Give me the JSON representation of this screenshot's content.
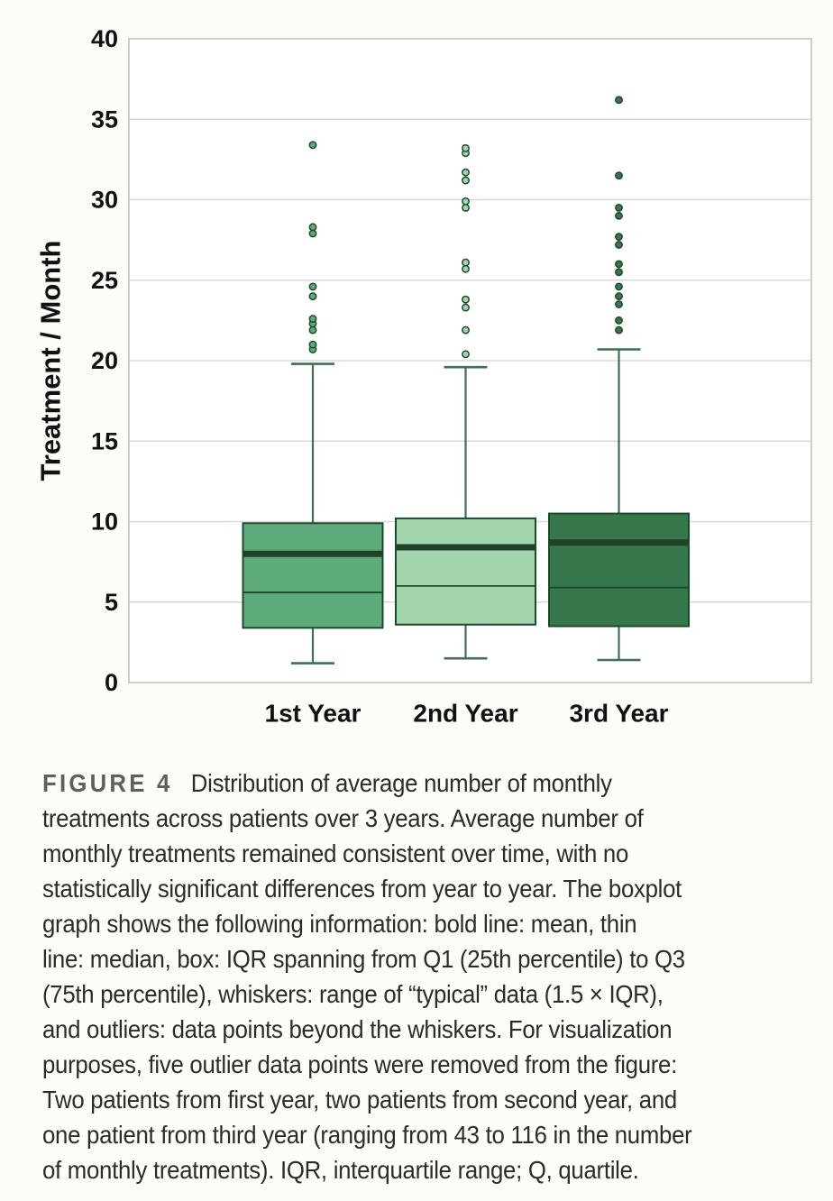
{
  "figure": {
    "caption": {
      "figure_label": "FIGURE 4",
      "lines": [
        "Distribution of average number of monthly",
        "treatments across patients over 3 years. Average number of",
        "monthly treatments remained consistent over time, with no",
        "statistically significant differences from year to year. The boxplot",
        "graph shows the following information: bold line: mean, thin",
        "line: median, box: IQR spanning from Q1 (25th percentile) to Q3",
        "(75th percentile), whiskers: range of “typical” data (1.5 × IQR),",
        "and outliers: data points beyond the whiskers. For visualization",
        "purposes, five outlier data points were removed from the figure:",
        "Two patients from first year, two patients from second year, and",
        "one patient from third year (ranging from 43 to 116 in the number",
        "of monthly treatments). IQR, interquartile range; Q, quartile."
      ]
    }
  },
  "chart_data": {
    "type": "boxplot",
    "title": "",
    "xlabel": "",
    "ylabel": "Treatment / Month",
    "ylim": [
      0,
      40
    ],
    "yticks": [
      0,
      5,
      10,
      15,
      20,
      25,
      30,
      35,
      40
    ],
    "grid": "horizontal",
    "legend": "none",
    "categories": [
      "1st Year",
      "2nd Year",
      "3rd Year"
    ],
    "series": [
      {
        "name": "1st Year",
        "whisker_low": 1.2,
        "q1": 3.4,
        "median": 5.6,
        "mean": 8.0,
        "q3": 9.9,
        "whisker_high": 19.8,
        "outliers": [
          20.7,
          21.0,
          21.9,
          22.3,
          22.6,
          24.0,
          24.6,
          27.9,
          28.3,
          33.4
        ],
        "fill_color": "#5dab7a"
      },
      {
        "name": "2nd Year",
        "whisker_low": 1.5,
        "q1": 3.6,
        "median": 6.0,
        "mean": 8.4,
        "q3": 10.2,
        "whisker_high": 19.6,
        "outliers": [
          20.4,
          21.9,
          23.3,
          23.8,
          25.7,
          26.1,
          29.5,
          29.9,
          31.2,
          31.7,
          32.9,
          33.2
        ],
        "fill_color": "#a1d6af"
      },
      {
        "name": "3rd Year",
        "whisker_low": 1.4,
        "q1": 3.5,
        "median": 5.9,
        "mean": 8.7,
        "q3": 10.5,
        "whisker_high": 20.7,
        "outliers": [
          21.9,
          22.5,
          23.5,
          24.0,
          24.6,
          25.5,
          26.0,
          27.2,
          27.7,
          29.0,
          29.5,
          31.5,
          36.2
        ],
        "fill_color": "#36774b"
      }
    ],
    "colors": {
      "box_border": "#1e4a2c",
      "mean_line": "#1d4227",
      "median_line": "#1e4a2c",
      "whisker": "#3f7053",
      "outlier_edge": "#1e4a2c",
      "gridline": "#d9d9d9",
      "axis_border": "#c9c9c9",
      "tick_label": "#111111",
      "plot_background": "#ffffff"
    }
  }
}
